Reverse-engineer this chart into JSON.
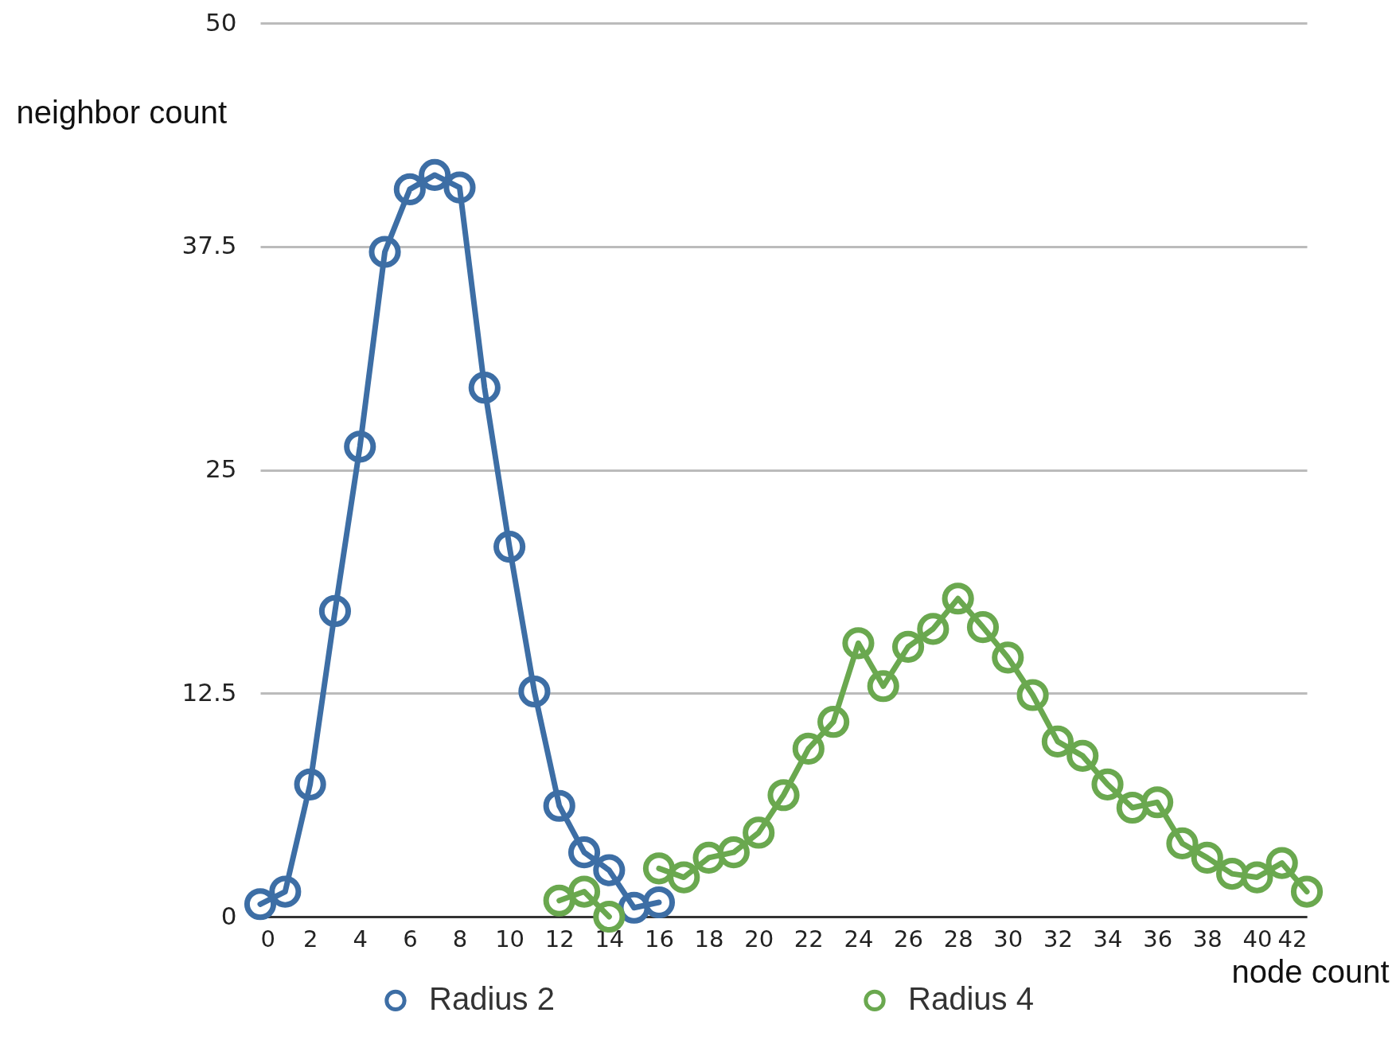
{
  "chart_data": {
    "type": "line",
    "xlabel": "node count",
    "ylabel": "neighbor count",
    "xlim": [
      0,
      42
    ],
    "xticks": [
      0,
      2,
      4,
      6,
      8,
      10,
      12,
      14,
      16,
      18,
      20,
      22,
      24,
      26,
      28,
      30,
      32,
      34,
      36,
      38,
      40,
      42
    ],
    "ylim": [
      0,
      50
    ],
    "yticks": [
      0,
      12.5,
      25,
      37.5,
      50
    ],
    "grid": "y",
    "legend": "bottom",
    "marker": "circle",
    "line_style": "solid",
    "series": [
      {
        "name": "Radius 2",
        "color": "#3d6ea5",
        "x": [
          0,
          1,
          2,
          3,
          4,
          5,
          6,
          7,
          8,
          9,
          10,
          11,
          12,
          13,
          14,
          15,
          16
        ],
        "values": [
          0.7,
          1.4,
          7.4,
          17.1,
          26.3,
          37.2,
          40.7,
          41.5,
          40.8,
          29.6,
          20.7,
          12.6,
          6.2,
          3.6,
          2.6,
          0.5,
          0.8
        ]
      },
      {
        "name": "Radius 4",
        "color": "#6aa84f",
        "x": [
          12,
          13,
          14,
          15,
          16,
          17,
          18,
          19,
          20,
          21,
          22,
          23,
          24,
          25,
          26,
          27,
          28,
          29,
          30,
          31,
          32,
          33,
          34,
          35,
          36,
          37,
          38,
          39,
          40,
          41,
          42
        ],
        "values": [
          0.9,
          1.4,
          0,
          null,
          2.7,
          2.2,
          3.3,
          3.6,
          4.7,
          6.8,
          9.4,
          10.9,
          15.3,
          12.9,
          15.1,
          16.1,
          17.8,
          16.2,
          14.5,
          12.4,
          9.8,
          9.0,
          7.4,
          6.1,
          6.4,
          4.1,
          3.3,
          2.4,
          2.2,
          3.0,
          1.4
        ]
      }
    ]
  }
}
